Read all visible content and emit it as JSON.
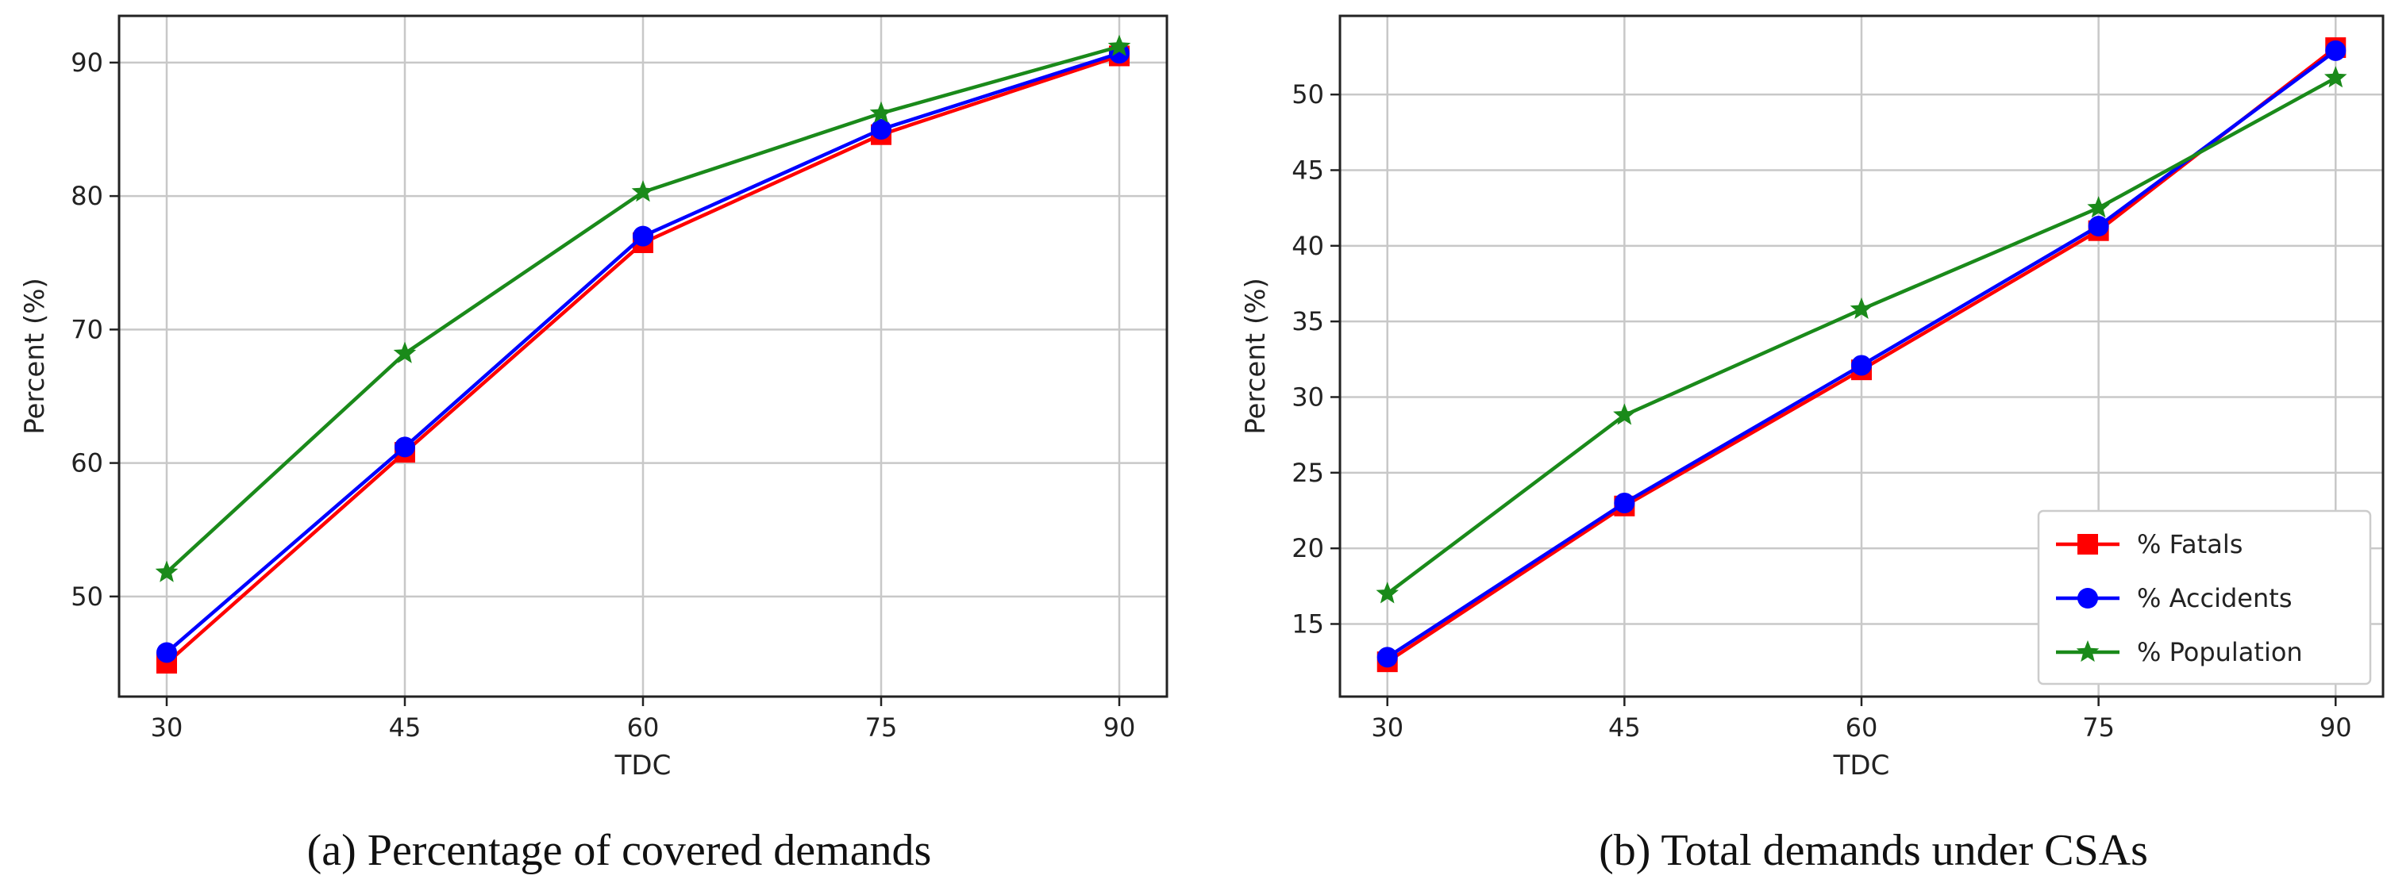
{
  "chart_data": [
    {
      "type": "line",
      "caption": "(a) Percentage of covered demands",
      "xlabel": "TDC",
      "ylabel": "Percent (%)",
      "x": [
        30,
        45,
        60,
        75,
        90
      ],
      "xticks": [
        "30",
        "45",
        "60",
        "75",
        "90"
      ],
      "xlim": [
        27,
        93
      ],
      "ylim": [
        42.5,
        93.5
      ],
      "yticks": [
        "50",
        "60",
        "70",
        "80",
        "90"
      ],
      "ytick_values": [
        50,
        60,
        70,
        80,
        90
      ],
      "grid": true,
      "series": [
        {
          "name": "% Fatals",
          "color": "#ff0000",
          "marker": "square",
          "values": [
            45.0,
            60.8,
            76.5,
            84.6,
            90.5
          ]
        },
        {
          "name": "% Accidents",
          "color": "#0000ff",
          "marker": "circle",
          "values": [
            45.8,
            61.2,
            77.0,
            85.0,
            90.7
          ]
        },
        {
          "name": "% Population",
          "color": "#1a8a1a",
          "marker": "star",
          "values": [
            51.8,
            68.2,
            80.3,
            86.2,
            91.2
          ]
        }
      ]
    },
    {
      "type": "line",
      "caption": "(b) Total demands under CSAs",
      "xlabel": "TDC",
      "ylabel": "Percent (%)",
      "x": [
        30,
        45,
        60,
        75,
        90
      ],
      "xticks": [
        "30",
        "45",
        "60",
        "75",
        "90"
      ],
      "xlim": [
        27,
        93
      ],
      "ylim": [
        10.2,
        55.2
      ],
      "yticks": [
        "15",
        "20",
        "25",
        "30",
        "35",
        "40",
        "45",
        "50"
      ],
      "ytick_values": [
        15,
        20,
        25,
        30,
        35,
        40,
        45,
        50
      ],
      "grid": true,
      "legend_position": "lower-right",
      "series": [
        {
          "name": "% Fatals",
          "color": "#ff0000",
          "marker": "square",
          "values": [
            12.5,
            22.8,
            31.8,
            41.0,
            53.1
          ]
        },
        {
          "name": "% Accidents",
          "color": "#0000ff",
          "marker": "circle",
          "values": [
            12.8,
            23.0,
            32.1,
            41.3,
            52.9
          ]
        },
        {
          "name": "% Population",
          "color": "#1a8a1a",
          "marker": "star",
          "values": [
            17.0,
            28.8,
            35.8,
            42.5,
            51.1
          ]
        }
      ]
    }
  ]
}
